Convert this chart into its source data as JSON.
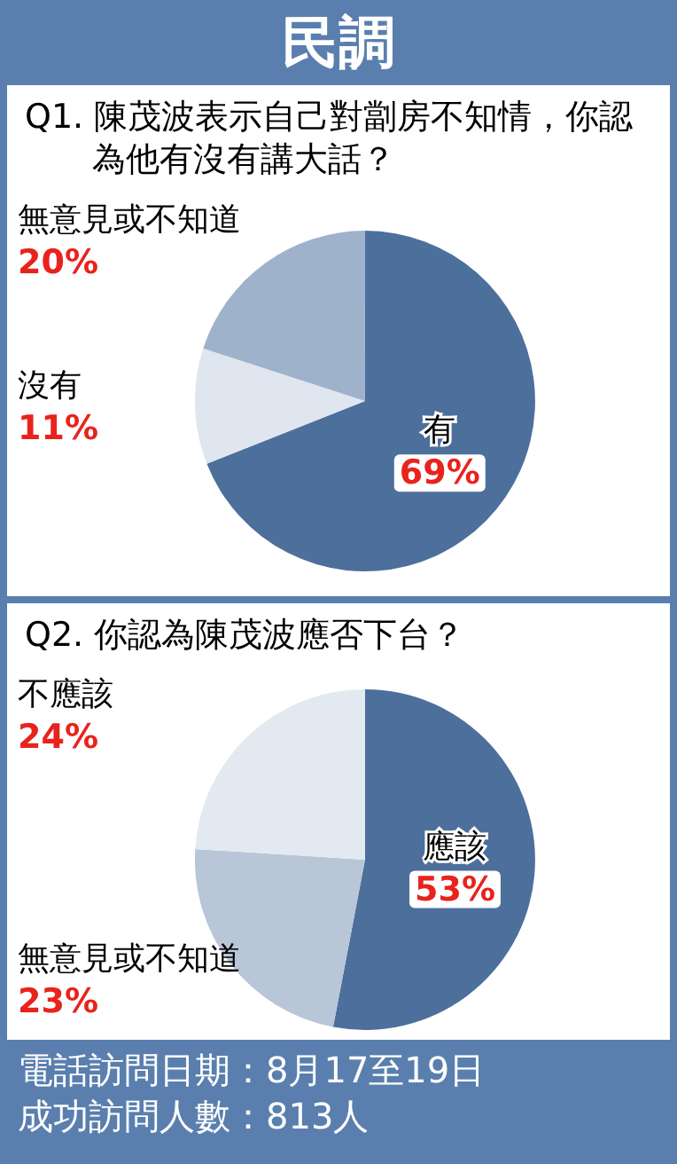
{
  "chart_data": [
    {
      "type": "pie",
      "title": "民調",
      "subtitle": "Q1. 陳茂波表示自己對劏房不知情，你認為他有沒有講大話？",
      "categories": [
        "有",
        "沒有",
        "無意見或不知道"
      ],
      "values": [
        69,
        11,
        20
      ],
      "value_labels": [
        "69%",
        "11%",
        "20%"
      ],
      "colors": [
        "#4d6f9c",
        "#dfe6ef",
        "#9fb2cc"
      ]
    },
    {
      "type": "pie",
      "title": "Q2. 你認為陳茂波應否下台？",
      "categories": [
        "應該",
        "無意見或不知道",
        "不應該"
      ],
      "values": [
        53,
        23,
        24
      ],
      "value_labels": [
        "53%",
        "23%",
        "24%"
      ],
      "colors": [
        "#4d6f9c",
        "#b9c6d8",
        "#e3e9f1"
      ],
      "annotations": [
        "電話訪問日期：8月17至19日",
        "成功訪問人數：813人"
      ]
    }
  ]
}
